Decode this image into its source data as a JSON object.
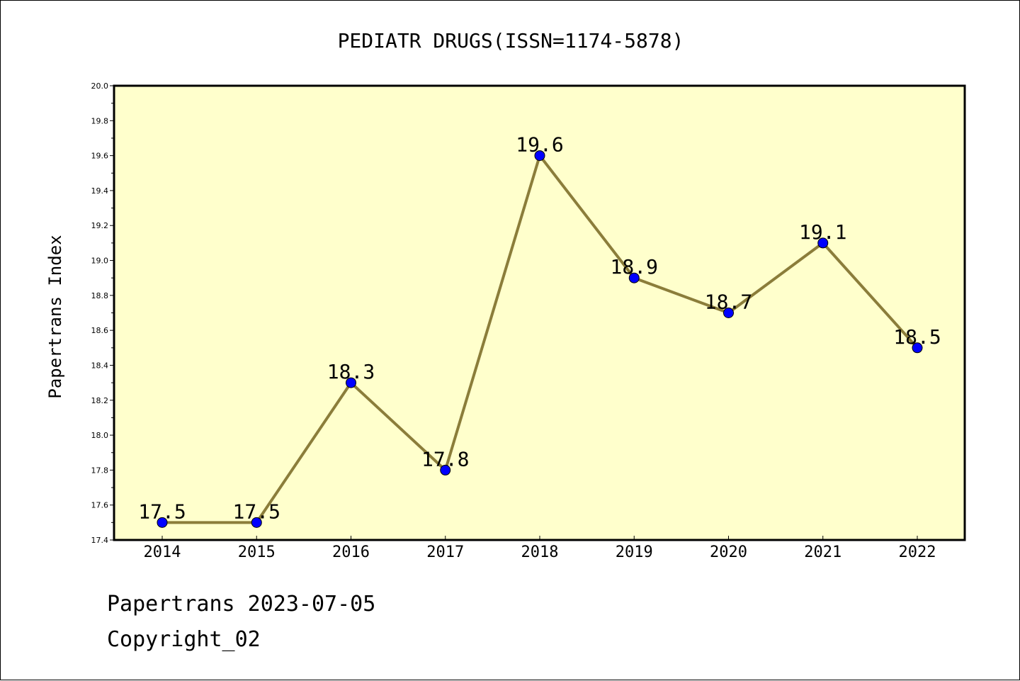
{
  "chart_data": {
    "type": "line",
    "title": "PEDIATR DRUGS(ISSN=1174-5878)",
    "xlabel": "",
    "ylabel": "Papertrans Index",
    "ylim": [
      17.4,
      20.0
    ],
    "yticks": [
      "17.4",
      "17.6",
      "17.8",
      "18.0",
      "18.2",
      "18.4",
      "18.6",
      "18.8",
      "19.0",
      "19.2",
      "19.4",
      "19.6",
      "19.8",
      "20.0"
    ],
    "categories": [
      "2014",
      "2015",
      "2016",
      "2017",
      "2018",
      "2019",
      "2020",
      "2021",
      "2022"
    ],
    "series": [
      {
        "values": [
          17.5,
          17.5,
          18.3,
          17.8,
          19.6,
          18.9,
          18.7,
          19.1,
          18.5
        ],
        "labels": [
          "17.5",
          "17.5",
          "18.3",
          "17.8",
          "19.6",
          "18.9",
          "18.7",
          "19.1",
          "18.5"
        ]
      }
    ],
    "grid": false,
    "colors": {
      "plot_bg": "#ffffcc",
      "line": "#8b7d3a",
      "marker": "#0000ff"
    }
  },
  "footer": {
    "line1": "Papertrans 2023-07-05",
    "line2": "Copyright_02"
  }
}
